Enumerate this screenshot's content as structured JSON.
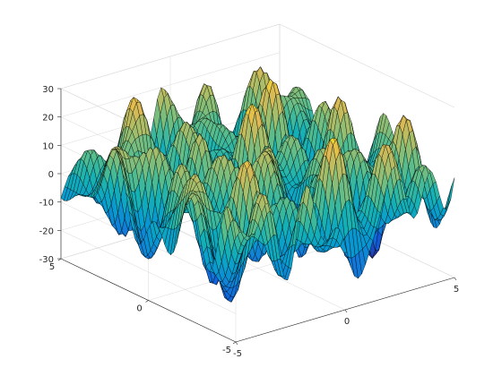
{
  "chart_data": {
    "type": "surface",
    "title": "",
    "xlabel": "",
    "ylabel": "",
    "zlabel": "",
    "xlim": [
      -5,
      5
    ],
    "ylim": [
      -5,
      5
    ],
    "zlim": [
      -30,
      30
    ],
    "x_ticks": [
      -5,
      0,
      5
    ],
    "y_ticks": [
      -5,
      0,
      5
    ],
    "z_ticks": [
      -30,
      -20,
      -10,
      0,
      10,
      20,
      30
    ],
    "x_tick_labels": [
      "-5",
      "0",
      "5"
    ],
    "y_tick_labels": [
      "-5",
      "0",
      "5"
    ],
    "z_tick_labels": [
      "-30",
      "-20",
      "-10",
      "0",
      "10",
      "20",
      "30"
    ],
    "grid": true,
    "box": "3d-box",
    "view": "default-3d-perspective-azimuth-37.5-elevation-30",
    "colormap": "parula",
    "edge_color": "#000000",
    "surface_shape": "multi-frequency oscillating surface: many sharp peaks and valleys across the whole domain, peak heights about 30 and valley depths about -30",
    "grid_points_x": 60,
    "grid_points_y": 60
  }
}
